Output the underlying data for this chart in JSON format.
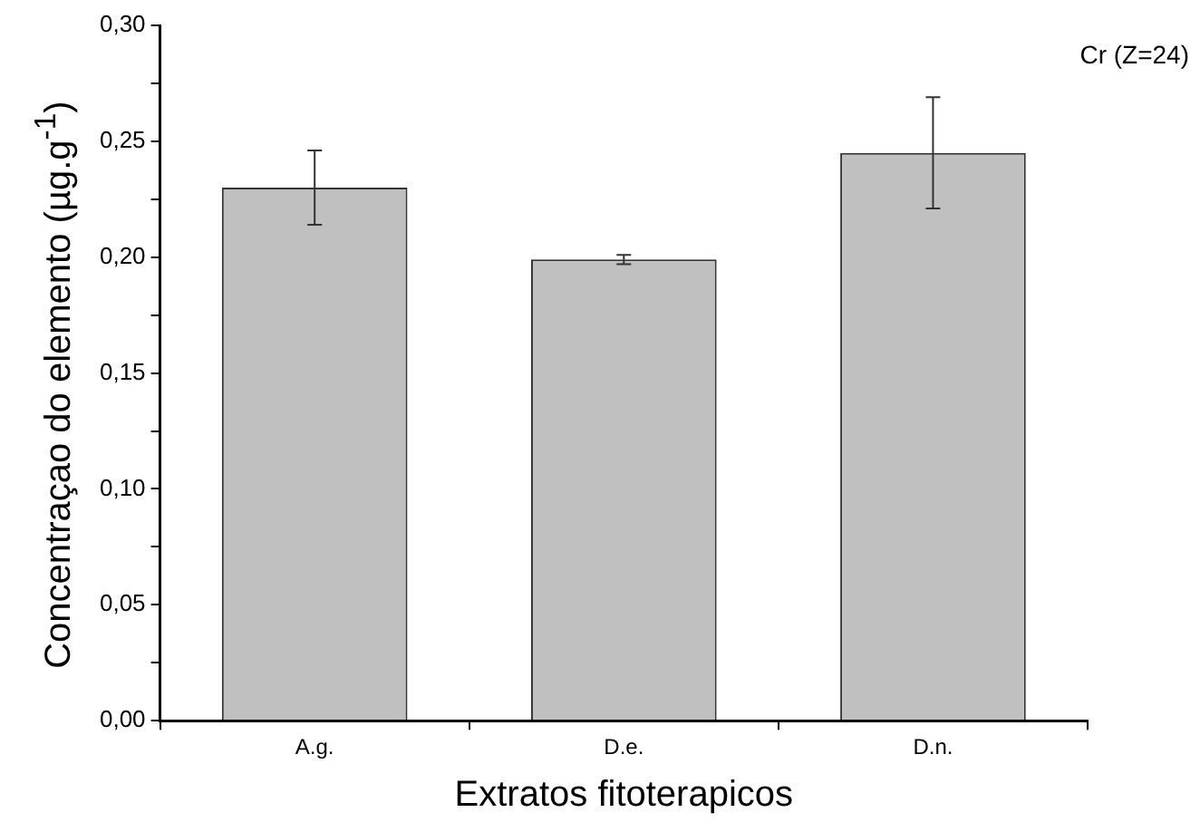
{
  "chart_data": {
    "type": "bar",
    "xlabel": "Extratos fitoterapicos",
    "ylabel": "Concentraçao do elemento (µg.g$^{-1}$)",
    "categories": [
      "A.g.",
      "D.e.",
      "D.n."
    ],
    "values": [
      0.23,
      0.199,
      0.245
    ],
    "errors": [
      0.016,
      0.002,
      0.024
    ],
    "color": "#c0c0c0",
    "ylim": [
      0,
      0.3
    ],
    "yticks": [
      {
        "value": 0,
        "label": "0,00"
      },
      {
        "value": 0.025,
        "label": null
      },
      {
        "value": 0.05,
        "label": "0,05"
      },
      {
        "value": 0.075,
        "label": null
      },
      {
        "value": 0.1,
        "label": "0,10"
      },
      {
        "value": 0.125,
        "label": null
      },
      {
        "value": 0.15,
        "label": "0,15"
      },
      {
        "value": 0.175,
        "label": null
      },
      {
        "value": 0.2,
        "label": "0,20"
      },
      {
        "value": 0.225,
        "label": null
      },
      {
        "value": 0.25,
        "label": "0,25"
      },
      {
        "value": 0.275,
        "label": null
      },
      {
        "value": 0.3,
        "label": "0,30"
      }
    ],
    "annotations": [
      "Cr (Z=24)"
    ],
    "grid": false,
    "legend": false
  }
}
